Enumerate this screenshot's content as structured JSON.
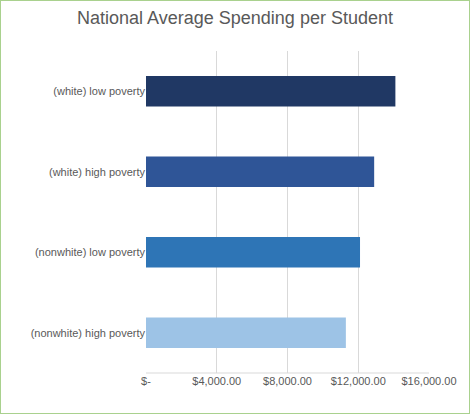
{
  "chart_data": {
    "type": "bar",
    "orientation": "horizontal",
    "title": "National Average Spending per Student",
    "categories": [
      "(white) low poverty",
      "(white) high poverty",
      "(nonwhite) low poverty",
      "(nonwhite) high poverty"
    ],
    "values": [
      14100,
      12900,
      12100,
      11300
    ],
    "colors": [
      "#203864",
      "#2f5597",
      "#2e75b6",
      "#9dc3e6"
    ],
    "xlim": [
      0,
      16000
    ],
    "xticks": [
      {
        "value": 0,
        "label": "$-"
      },
      {
        "value": 4000,
        "label": "$4,000.00"
      },
      {
        "value": 8000,
        "label": "$8,000.00"
      },
      {
        "value": 12000,
        "label": "$12,000.00"
      },
      {
        "value": 16000,
        "label": "$16,000.00"
      }
    ],
    "grid": true
  }
}
